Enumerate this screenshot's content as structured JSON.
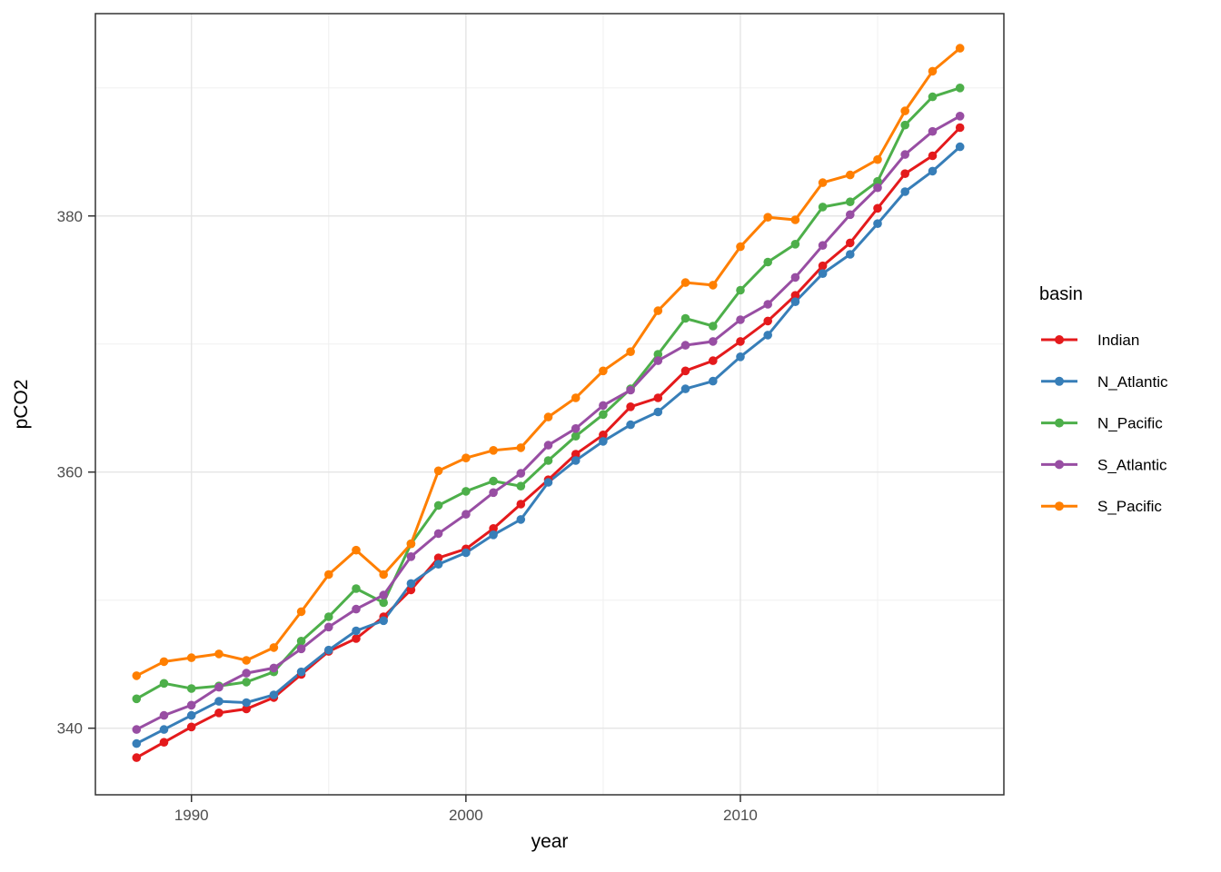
{
  "figure": {
    "background": "#ffffff",
    "panel_border_color": "#333333",
    "grid_major_color": "#e5e5e5",
    "grid_minor_color": "#f0f0f0",
    "tick_color": "#333333",
    "tick_label_color": "#4d4d4d"
  },
  "chart_data": {
    "type": "line",
    "title": "",
    "xlabel": "year",
    "ylabel": "pCO2",
    "marker": "point",
    "grid": true,
    "legend": {
      "title": "basin",
      "position": "right"
    },
    "x_axis": {
      "ticks": [
        1990,
        2000,
        2010
      ],
      "minor_ticks": [
        1995,
        2005,
        2015
      ],
      "domain": [
        1986.5,
        2019.6
      ]
    },
    "y_axis": {
      "ticks": [
        340,
        360,
        380
      ],
      "minor_ticks": [
        350,
        370,
        390
      ],
      "domain": [
        334.8,
        395.8
      ]
    },
    "x": [
      1988,
      1989,
      1990,
      1991,
      1992,
      1993,
      1994,
      1995,
      1996,
      1997,
      1998,
      1999,
      2000,
      2001,
      2002,
      2003,
      2004,
      2005,
      2006,
      2007,
      2008,
      2009,
      2010,
      2011,
      2012,
      2013,
      2014,
      2015,
      2016,
      2017,
      2018
    ],
    "series": [
      {
        "name": "Indian",
        "color": "#E41A1C",
        "values": [
          337.7,
          338.9,
          340.1,
          341.2,
          341.5,
          342.4,
          344.2,
          346.0,
          347.0,
          348.7,
          350.8,
          353.3,
          354.0,
          355.6,
          357.5,
          359.4,
          361.4,
          362.9,
          365.1,
          365.8,
          367.9,
          368.7,
          370.2,
          371.8,
          373.8,
          376.1,
          377.9,
          380.6,
          383.3,
          384.7,
          386.9
        ]
      },
      {
        "name": "N_Atlantic",
        "color": "#377EB8",
        "values": [
          338.8,
          339.9,
          341.0,
          342.1,
          342.0,
          342.6,
          344.4,
          346.1,
          347.6,
          348.4,
          351.3,
          352.8,
          353.7,
          355.1,
          356.3,
          359.2,
          360.9,
          362.4,
          363.7,
          364.7,
          366.5,
          367.1,
          369.0,
          370.7,
          373.3,
          375.5,
          377.0,
          379.4,
          381.9,
          383.5,
          385.4
        ]
      },
      {
        "name": "N_Pacific",
        "color": "#4DAF4A",
        "values": [
          342.3,
          343.5,
          343.1,
          343.3,
          343.6,
          344.4,
          346.8,
          348.7,
          350.9,
          349.8,
          354.4,
          357.4,
          358.5,
          359.3,
          358.9,
          360.9,
          362.8,
          364.5,
          366.5,
          369.2,
          372.0,
          371.4,
          374.2,
          376.4,
          377.8,
          380.7,
          381.1,
          382.7,
          387.1,
          389.3,
          390.0
        ]
      },
      {
        "name": "S_Atlantic",
        "color": "#984EA3",
        "values": [
          339.9,
          341.0,
          341.8,
          343.2,
          344.3,
          344.7,
          346.2,
          347.9,
          349.3,
          350.4,
          353.4,
          355.2,
          356.7,
          358.4,
          359.9,
          362.1,
          363.4,
          365.2,
          366.4,
          368.7,
          369.9,
          370.2,
          371.9,
          373.1,
          375.2,
          377.7,
          380.1,
          382.2,
          384.8,
          386.6,
          387.8
        ]
      },
      {
        "name": "S_Pacific",
        "color": "#FF7F00",
        "values": [
          344.1,
          345.2,
          345.5,
          345.8,
          345.3,
          346.3,
          349.1,
          352.0,
          353.9,
          352.0,
          354.4,
          360.1,
          361.1,
          361.7,
          361.9,
          364.3,
          365.8,
          367.9,
          369.4,
          372.6,
          374.8,
          374.6,
          377.6,
          379.9,
          379.7,
          382.6,
          383.2,
          384.4,
          388.2,
          391.3,
          393.1
        ]
      }
    ]
  }
}
